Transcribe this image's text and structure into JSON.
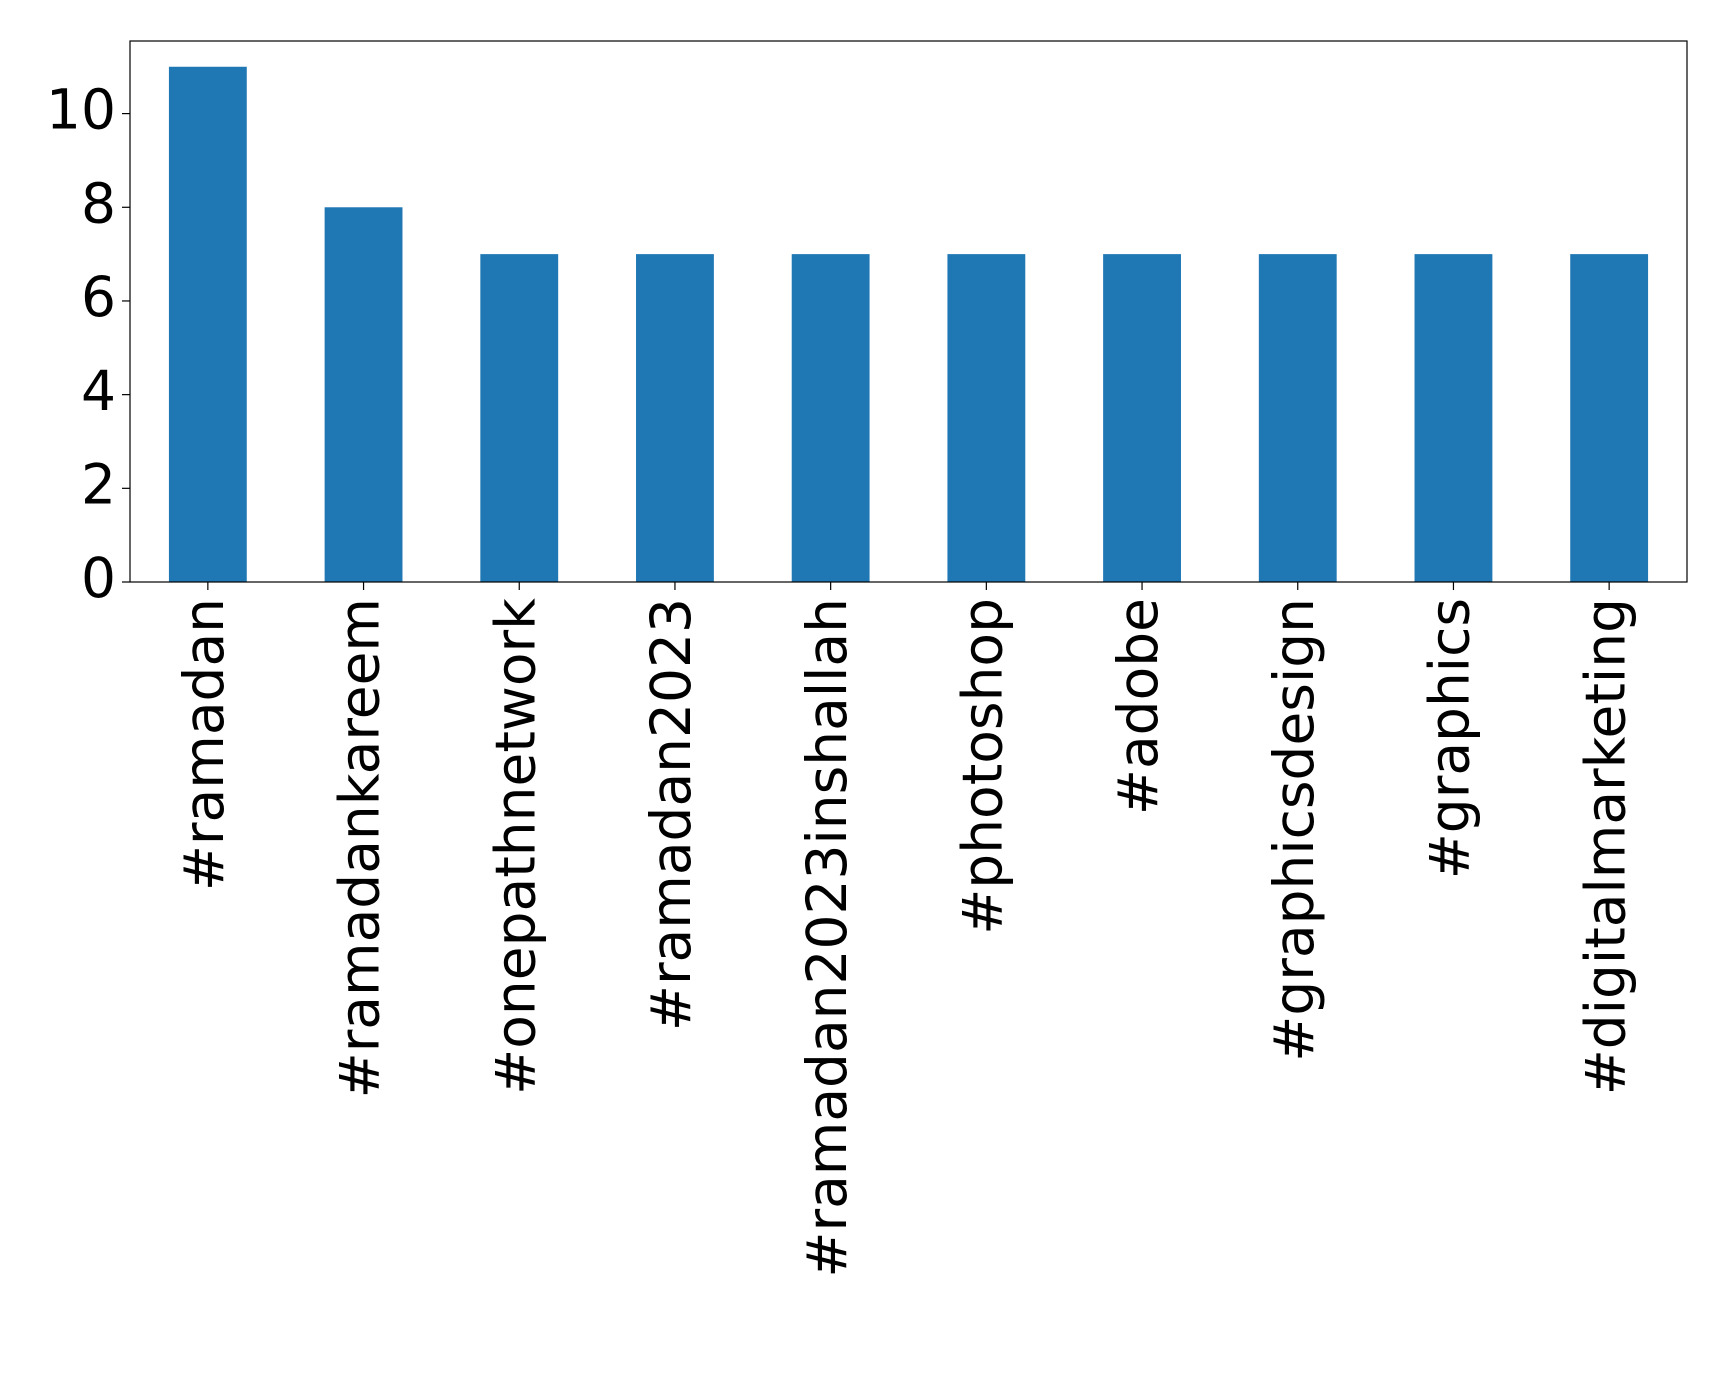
{
  "chart_data": {
    "type": "bar",
    "categories": [
      "#ramadan",
      "#ramadankareem",
      "#onepathnetwork",
      "#ramadan2023",
      "#ramadan2023inshallah",
      "#photoshop",
      "#adobe",
      "#graphicsdesign",
      "#graphics",
      "#digitalmarketing"
    ],
    "values": [
      11,
      8,
      7,
      7,
      7,
      7,
      7,
      7,
      7,
      7
    ],
    "color": "#1f77b4",
    "ylim": [
      0,
      11.55
    ],
    "yticks": [
      0,
      2,
      4,
      6,
      8,
      10
    ],
    "grid": false
  }
}
